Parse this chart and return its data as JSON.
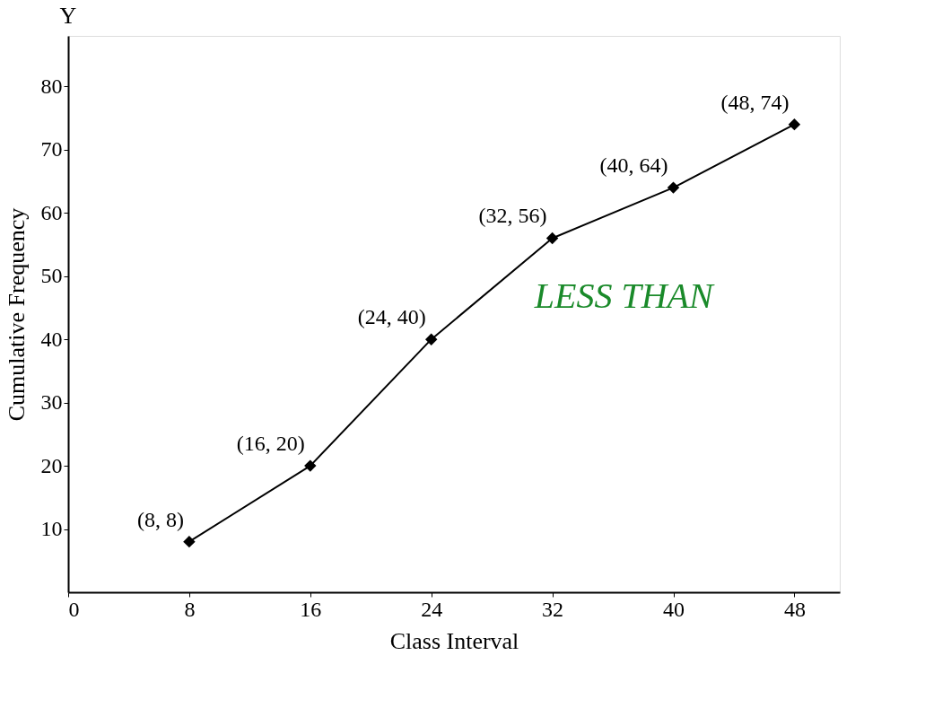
{
  "chart_data": {
    "type": "line",
    "xlabel": "Class Interval",
    "ylabel": "Cumulative Frequency",
    "annotations": [
      "Y",
      "LESS THAN"
    ],
    "x": [
      8,
      16,
      24,
      32,
      40,
      48
    ],
    "series": [
      {
        "color": "#000000",
        "values": [
          8,
          20,
          40,
          56,
          64,
          74
        ],
        "value_labels": [
          "(8, 8)",
          "(16, 20)",
          "(24, 40)",
          "(32, 56)",
          "(40, 64)",
          "(48, 74)"
        ]
      }
    ],
    "xlim": [
      0,
      51
    ],
    "ylim": [
      0,
      88
    ],
    "xticks": [
      0,
      8,
      16,
      24,
      32,
      40,
      48
    ],
    "yticks": [
      10,
      20,
      30,
      40,
      50,
      60,
      70,
      80
    ],
    "grid": false,
    "legend": false,
    "marker": "diamond",
    "line_style": "solid"
  }
}
